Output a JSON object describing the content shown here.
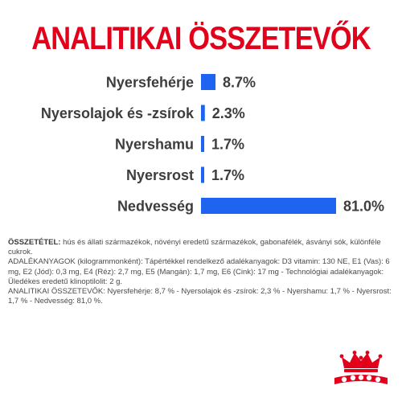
{
  "title": "ANALITIKAI ÖSSZETEVŐK",
  "chart_data": {
    "type": "bar",
    "orientation": "horizontal",
    "categories": [
      "Nyersfehérje",
      "Nyersolajok és -zsírok",
      "Nyershamu",
      "Nyersrost",
      "Nedvesség"
    ],
    "values": [
      8.7,
      2.3,
      1.7,
      1.7,
      81.0
    ],
    "value_labels": [
      "8.7%",
      "2.3%",
      "1.7%",
      "1.7%",
      "81.0%"
    ],
    "bar_color": "#1e64f0",
    "unit": "%",
    "grid": false
  },
  "info": {
    "composition_label": "ÖSSZETÉTEL:",
    "composition_text": " hús és állati származékok, növényi eredetű származékok, gabonafélék, ásványi sók, különféle cukrok.",
    "additives_text": "ADALÉKANYAGOK (kilogrammonként): Tápértékkel rendelkező adalékanyagok: D3 vitamin: 130 NE, E1 (Vas): 6 mg, E2 (Jód): 0,3 mg, E4 (Réz): 2,7 mg, E5 (Mangán): 1,7 mg, E6 (Cink): 17 mg - Technológiai adalékanyagok: Üledékes eredetű klinoptilolit: 2 g.",
    "analytics_text": "ANALITIKAI ÖSSZETEVŐK: Nyersfehérje: 8,7 % - Nyersolajok és -zsírok: 2,3 % - Nyershamu: 1,7 % - Nyersrost: 1,7 % - Nedvesség: 81,0 %."
  },
  "logo": {
    "brand": "ROYAL CANIN",
    "color": "#e2001a"
  }
}
